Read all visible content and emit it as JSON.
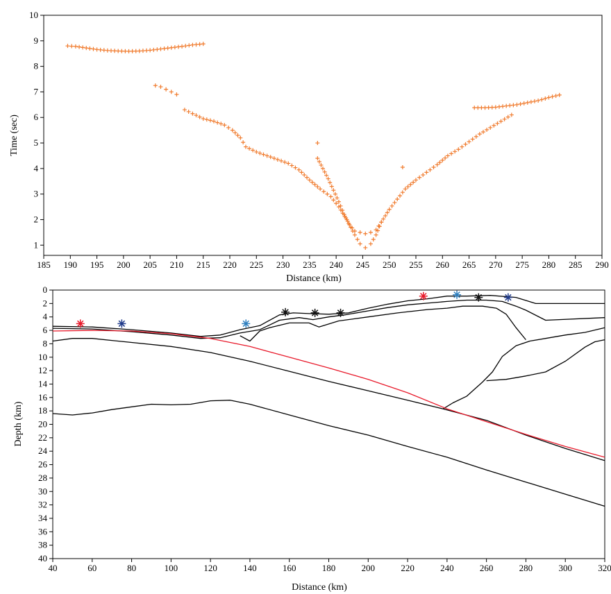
{
  "chart_data": [
    {
      "type": "scatter",
      "xlabel": "Distance (km)",
      "ylabel": "Time (sec)",
      "xlim": [
        185,
        290
      ],
      "ylim": [
        0.6,
        10
      ],
      "xticks": [
        185,
        190,
        195,
        200,
        205,
        210,
        215,
        220,
        225,
        230,
        235,
        240,
        245,
        250,
        255,
        260,
        265,
        270,
        275,
        280,
        285,
        290
      ],
      "yticks": [
        1,
        2,
        3,
        4,
        5,
        6,
        7,
        8,
        9,
        10
      ],
      "marker": "+",
      "marker_color": "#f07a2c",
      "grid": false,
      "series": [
        {
          "segments": [
            [
              [
                189.5,
                8.8
              ],
              [
                191,
                8.78
              ],
              [
                193,
                8.72
              ],
              [
                195,
                8.66
              ],
              [
                197,
                8.62
              ],
              [
                199,
                8.6
              ],
              [
                201,
                8.59
              ],
              [
                203,
                8.6
              ],
              [
                205,
                8.63
              ],
              [
                207,
                8.68
              ],
              [
                209,
                8.73
              ],
              [
                211,
                8.78
              ],
              [
                213,
                8.84
              ],
              [
                215,
                8.88
              ]
            ],
            [
              [
                206,
                7.25
              ],
              [
                207,
                7.2
              ],
              [
                208,
                7.1
              ],
              [
                209,
                7.0
              ],
              [
                210,
                6.9
              ]
            ],
            [
              [
                211.5,
                6.3
              ],
              [
                213,
                6.15
              ],
              [
                215,
                5.95
              ],
              [
                217,
                5.85
              ],
              [
                219,
                5.7
              ],
              [
                220.5,
                5.5
              ],
              [
                222,
                5.2
              ],
              [
                223,
                4.85
              ],
              [
                225,
                4.65
              ],
              [
                227,
                4.5
              ],
              [
                229,
                4.35
              ],
              [
                231,
                4.2
              ],
              [
                233,
                3.95
              ],
              [
                235,
                3.55
              ],
              [
                237,
                3.2
              ],
              [
                239,
                2.9
              ],
              [
                240.5,
                2.5
              ],
              [
                242,
                2.0
              ],
              [
                243.5,
                1.4
              ],
              [
                244.5,
                1.05
              ],
              [
                245.5,
                0.9
              ],
              [
                246.5,
                1.05
              ],
              [
                247.5,
                1.4
              ],
              [
                248.5,
                1.9
              ],
              [
                250,
                2.4
              ],
              [
                251.5,
                2.8
              ],
              [
                253,
                3.2
              ],
              [
                255,
                3.55
              ],
              [
                257,
                3.85
              ],
              [
                259,
                4.15
              ],
              [
                261,
                4.5
              ],
              [
                263,
                4.75
              ],
              [
                265,
                5.05
              ],
              [
                267,
                5.35
              ],
              [
                269,
                5.6
              ],
              [
                271,
                5.85
              ],
              [
                273,
                6.1
              ]
            ],
            [
              [
                236.5,
                4.4
              ],
              [
                237.5,
                4.0
              ],
              [
                238.5,
                3.6
              ],
              [
                239.5,
                3.15
              ],
              [
                240.5,
                2.7
              ],
              [
                241.5,
                2.2
              ],
              [
                242.5,
                1.8
              ],
              [
                243.5,
                1.55
              ],
              [
                244.5,
                1.5
              ],
              [
                245.5,
                1.45
              ],
              [
                246.5,
                1.5
              ],
              [
                247.5,
                1.6
              ],
              [
                248.5,
                1.9
              ]
            ],
            [
              [
                266,
                6.38
              ],
              [
                268,
                6.38
              ],
              [
                270,
                6.4
              ],
              [
                272,
                6.45
              ],
              [
                274,
                6.5
              ],
              [
                276,
                6.58
              ],
              [
                278,
                6.66
              ],
              [
                280,
                6.78
              ],
              [
                282,
                6.88
              ]
            ],
            [
              [
                236.5,
                5.0
              ]
            ],
            [
              [
                252.5,
                4.05
              ]
            ]
          ]
        }
      ]
    },
    {
      "type": "line",
      "xlabel": "Distance (km)",
      "ylabel": "Depth (km)",
      "xlim": [
        40,
        320
      ],
      "ylim": [
        0,
        40
      ],
      "y_inverted": true,
      "xticks": [
        40,
        60,
        80,
        100,
        120,
        140,
        160,
        180,
        200,
        220,
        240,
        260,
        280,
        300,
        320
      ],
      "yticks": [
        0,
        2,
        4,
        6,
        8,
        10,
        12,
        14,
        16,
        18,
        20,
        22,
        24,
        26,
        28,
        30,
        32,
        34,
        36,
        38,
        40
      ],
      "grid": false,
      "series": [
        {
          "color": "#000000",
          "points": [
            [
              40,
              5.4
            ],
            [
              60,
              5.5
            ],
            [
              80,
              5.9
            ],
            [
              100,
              6.4
            ],
            [
              115,
              6.9
            ],
            [
              125,
              6.7
            ],
            [
              135,
              5.9
            ],
            [
              145,
              5.3
            ],
            [
              155,
              3.7
            ],
            [
              162,
              3.4
            ],
            [
              170,
              3.5
            ],
            [
              180,
              3.6
            ],
            [
              190,
              3.4
            ],
            [
              200,
              2.7
            ],
            [
              210,
              2.1
            ],
            [
              220,
              1.6
            ],
            [
              230,
              1.3
            ],
            [
              240,
              0.9
            ],
            [
              250,
              0.9
            ],
            [
              262,
              0.8
            ],
            [
              275,
              1.1
            ],
            [
              285,
              2.0
            ],
            [
              320,
              2.0
            ]
          ]
        },
        {
          "color": "#000000",
          "points": [
            [
              40,
              5.7
            ],
            [
              60,
              5.8
            ],
            [
              80,
              6.2
            ],
            [
              100,
              6.7
            ],
            [
              115,
              7.2
            ],
            [
              125,
              7.1
            ],
            [
              135,
              6.4
            ],
            [
              145,
              5.9
            ],
            [
              155,
              4.5
            ],
            [
              165,
              4.1
            ],
            [
              172,
              4.4
            ],
            [
              180,
              4.0
            ],
            [
              188,
              3.7
            ],
            [
              200,
              3.1
            ],
            [
              210,
              2.6
            ],
            [
              220,
              2.2
            ],
            [
              232,
              1.9
            ],
            [
              240,
              1.7
            ],
            [
              250,
              1.5
            ],
            [
              260,
              1.5
            ],
            [
              268,
              1.7
            ],
            [
              275,
              2.4
            ],
            [
              280,
              3.0
            ],
            [
              290,
              4.5
            ],
            [
              320,
              4.1
            ]
          ]
        },
        {
          "color": "#000000",
          "points": [
            [
              135,
              6.8
            ],
            [
              140,
              7.6
            ],
            [
              145,
              6.1
            ],
            [
              150,
              5.6
            ],
            [
              160,
              4.9
            ],
            [
              170,
              4.9
            ],
            [
              175,
              5.5
            ],
            [
              185,
              4.6
            ],
            [
              200,
              4.0
            ],
            [
              215,
              3.4
            ],
            [
              230,
              2.9
            ],
            [
              240,
              2.7
            ],
            [
              248,
              2.4
            ],
            [
              258,
              2.4
            ],
            [
              265,
              2.7
            ],
            [
              270,
              3.6
            ],
            [
              275,
              5.6
            ],
            [
              280,
              7.4
            ]
          ]
        },
        {
          "color": "#000000",
          "points": [
            [
              238,
              17.7
            ],
            [
              243,
              16.8
            ],
            [
              250,
              15.8
            ],
            [
              258,
              13.7
            ],
            [
              263,
              12.2
            ],
            [
              268,
              9.9
            ],
            [
              275,
              8.3
            ],
            [
              282,
              7.6
            ],
            [
              290,
              7.2
            ],
            [
              300,
              6.7
            ],
            [
              310,
              6.3
            ],
            [
              320,
              5.6
            ]
          ]
        },
        {
          "color": "#000000",
          "points": [
            [
              260,
              13.5
            ],
            [
              270,
              13.3
            ],
            [
              280,
              12.8
            ],
            [
              290,
              12.2
            ],
            [
              300,
              10.6
            ],
            [
              310,
              8.5
            ],
            [
              315,
              7.7
            ],
            [
              320,
              7.4
            ]
          ]
        },
        {
          "color": "#000000",
          "points": [
            [
              40,
              7.6
            ],
            [
              50,
              7.2
            ],
            [
              60,
              7.2
            ],
            [
              70,
              7.5
            ],
            [
              80,
              7.8
            ],
            [
              100,
              8.4
            ],
            [
              120,
              9.3
            ],
            [
              140,
              10.6
            ],
            [
              160,
              12.1
            ],
            [
              180,
              13.6
            ],
            [
              200,
              15.0
            ],
            [
              220,
              16.4
            ],
            [
              238,
              17.7
            ],
            [
              260,
              19.4
            ],
            [
              280,
              21.6
            ],
            [
              300,
              23.6
            ],
            [
              320,
              25.4
            ]
          ]
        },
        {
          "color": "#000000",
          "points": [
            [
              40,
              18.4
            ],
            [
              50,
              18.6
            ],
            [
              60,
              18.3
            ],
            [
              70,
              17.8
            ],
            [
              80,
              17.4
            ],
            [
              90,
              17.0
            ],
            [
              100,
              17.1
            ],
            [
              110,
              17.0
            ],
            [
              120,
              16.5
            ],
            [
              130,
              16.4
            ],
            [
              140,
              17.0
            ],
            [
              160,
              18.6
            ],
            [
              180,
              20.2
            ],
            [
              200,
              21.6
            ],
            [
              220,
              23.3
            ],
            [
              240,
              24.9
            ],
            [
              260,
              26.8
            ],
            [
              280,
              28.6
            ],
            [
              300,
              30.4
            ],
            [
              320,
              32.2
            ]
          ]
        },
        {
          "color": "#e8192a",
          "points": [
            [
              40,
              6.1
            ],
            [
              60,
              6.0
            ],
            [
              80,
              6.1
            ],
            [
              100,
              6.5
            ],
            [
              120,
              7.2
            ],
            [
              140,
              8.4
            ],
            [
              160,
              10.0
            ],
            [
              180,
              11.6
            ],
            [
              200,
              13.3
            ],
            [
              220,
              15.3
            ],
            [
              240,
              17.7
            ],
            [
              260,
              19.6
            ],
            [
              280,
              21.5
            ],
            [
              300,
              23.3
            ],
            [
              320,
              24.9
            ]
          ]
        }
      ],
      "markers": [
        {
          "x": 54,
          "y": 5.0,
          "symbol": "*",
          "color": "#e8192a"
        },
        {
          "x": 75,
          "y": 5.0,
          "symbol": "*",
          "color": "#1f3a8a"
        },
        {
          "x": 138,
          "y": 5.0,
          "symbol": "*",
          "color": "#2f80c0"
        },
        {
          "x": 158,
          "y": 3.3,
          "symbol": "*",
          "color": "#111111"
        },
        {
          "x": 173,
          "y": 3.4,
          "symbol": "*",
          "color": "#111111"
        },
        {
          "x": 186,
          "y": 3.4,
          "symbol": "*",
          "color": "#111111"
        },
        {
          "x": 228,
          "y": 0.9,
          "symbol": "*",
          "color": "#e8192a"
        },
        {
          "x": 245,
          "y": 0.7,
          "symbol": "*",
          "color": "#2f80c0"
        },
        {
          "x": 256,
          "y": 1.1,
          "symbol": "*",
          "color": "#111111"
        },
        {
          "x": 271,
          "y": 1.1,
          "symbol": "*",
          "color": "#1f3a8a"
        }
      ]
    }
  ]
}
